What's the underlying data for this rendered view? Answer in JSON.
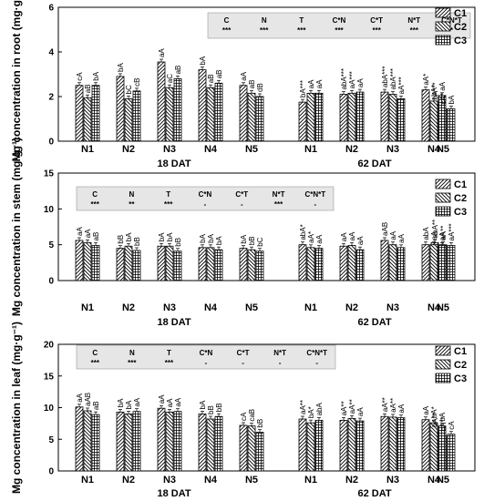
{
  "chart_data": [
    {
      "type": "bar",
      "ylabel": "Mg concentration in root (mg·g⁻¹)",
      "ylim": [
        0,
        6
      ],
      "yticks": [
        0,
        2,
        4,
        6
      ],
      "group_labels": [
        "18 DAT",
        "62 DAT"
      ],
      "categories": [
        "N1",
        "N2",
        "N3",
        "N4",
        "N5",
        "N1",
        "N2",
        "N3",
        "N4",
        "N5"
      ],
      "series": [
        {
          "name": "C1",
          "values": [
            2.5,
            2.9,
            3.55,
            3.2,
            2.5,
            1.75,
            2.1,
            2.2,
            2.3,
            1.65
          ]
        },
        {
          "name": "C2",
          "values": [
            1.95,
            1.9,
            2.4,
            2.4,
            2.15,
            2.15,
            2.15,
            2.1,
            1.8,
            1.45
          ]
        },
        {
          "name": "C3",
          "values": [
            2.5,
            2.25,
            2.8,
            2.6,
            2.0,
            2.15,
            2.2,
            1.9,
            2.05,
            1.45
          ]
        }
      ],
      "bar_labels": [
        [
          "cA",
          "bA",
          "aA",
          "bA",
          "aA",
          "bA***",
          "abA***",
          "abA***",
          "aA*",
          "bA***"
        ],
        [
          "aB",
          "bC",
          "aC",
          "aB",
          "aB",
          "aA",
          "aA***",
          "abA***",
          "bA*",
          "cA*"
        ],
        [
          "bA",
          "cB",
          "aB",
          "aB",
          "dB",
          "aA",
          "aA",
          "aA***",
          "aA",
          "bA"
        ]
      ],
      "legend": [
        "C1",
        "C2",
        "C3"
      ],
      "anova": {
        "terms": [
          "C",
          "N",
          "T",
          "C*N",
          "C*T",
          "N*T",
          "C*N*T"
        ],
        "signif": [
          "***",
          "***",
          "***",
          "***",
          "***",
          "***",
          "*"
        ]
      }
    },
    {
      "type": "bar",
      "ylabel": "Mg concentration in stem (mg·g⁻¹)",
      "ylim": [
        0,
        15
      ],
      "yticks": [
        0,
        5,
        10,
        15
      ],
      "group_labels": [
        "18 DAT",
        "62 DAT"
      ],
      "categories": [
        "N1",
        "N2",
        "N3",
        "N4",
        "N5",
        "N1",
        "N2",
        "N3",
        "N4",
        "N5"
      ],
      "series": [
        {
          "name": "C1",
          "values": [
            5.6,
            4.5,
            4.8,
            4.6,
            4.5,
            5.0,
            4.8,
            5.6,
            5.0,
            5.3
          ]
        },
        {
          "name": "C2",
          "values": [
            5.3,
            4.8,
            4.8,
            4.6,
            4.3,
            4.6,
            4.9,
            5.0,
            5.0,
            5.0
          ]
        },
        {
          "name": "C3",
          "values": [
            4.9,
            4.2,
            4.1,
            4.3,
            4.1,
            4.5,
            4.3,
            4.6,
            4.9,
            4.9
          ]
        }
      ],
      "bar_labels": [
        [
          "aA",
          "bB",
          "bA",
          "bA",
          "bA",
          "abA*",
          "aA",
          "aAB",
          "abA",
          "abA**"
        ],
        [
          "aA",
          "bA",
          "bA",
          "bA",
          "bB",
          "aA*",
          "aA",
          "aA",
          "aA",
          "aA**"
        ],
        [
          "aB",
          "bB",
          "bB",
          "bA",
          "bC",
          "aA",
          "aA",
          "aA",
          "aA",
          "aA***"
        ]
      ],
      "legend": [
        "C1",
        "C2",
        "C3"
      ],
      "anova": {
        "terms": [
          "C",
          "N",
          "T",
          "C*N",
          "C*T",
          "N*T",
          "C*N*T"
        ],
        "signif": [
          "***",
          "**",
          "***",
          "-",
          "-",
          "***",
          "-"
        ]
      }
    },
    {
      "type": "bar",
      "ylabel": "Mg concentration in leaf (mg·g⁻¹)",
      "ylim": [
        0,
        20
      ],
      "yticks": [
        0,
        5,
        10,
        15,
        20
      ],
      "group_labels": [
        "18 DAT",
        "62 DAT"
      ],
      "categories": [
        "N1",
        "N2",
        "N3",
        "N4",
        "N5",
        "N1",
        "N2",
        "N3",
        "N4",
        "N5"
      ],
      "series": [
        {
          "name": "C1",
          "values": [
            10.1,
            9.3,
            9.9,
            9.0,
            7.2,
            8.2,
            8.0,
            8.6,
            8.1,
            6.2
          ]
        },
        {
          "name": "C2",
          "values": [
            9.5,
            9.0,
            9.3,
            8.2,
            7.1,
            7.6,
            8.3,
            8.5,
            7.6,
            5.6
          ]
        },
        {
          "name": "C3",
          "values": [
            8.9,
            9.4,
            9.4,
            8.6,
            6.1,
            8.0,
            7.9,
            8.4,
            7.1,
            5.8
          ]
        }
      ],
      "bar_labels": [
        [
          "aA",
          "bA",
          "aA",
          "bA",
          "cA",
          "aA**",
          "aA**",
          "aA**",
          "aA",
          "bA**"
        ],
        [
          "aAB",
          "bA",
          "aA",
          "bB",
          "caB",
          "bA*",
          "aA**",
          "aA**",
          "bA*",
          "cA**"
        ],
        [
          "aB",
          "aA",
          "aA",
          "bB",
          "bB",
          "abA",
          "aA",
          "aA",
          "bA",
          "cA"
        ]
      ],
      "legend": [
        "C1",
        "C2",
        "C3"
      ],
      "anova": {
        "terms": [
          "C",
          "N",
          "T",
          "C*N",
          "C*T",
          "N*T",
          "C*N*T"
        ],
        "signif": [
          "***",
          "***",
          "***",
          "-",
          "-",
          "-",
          "-"
        ]
      }
    }
  ]
}
